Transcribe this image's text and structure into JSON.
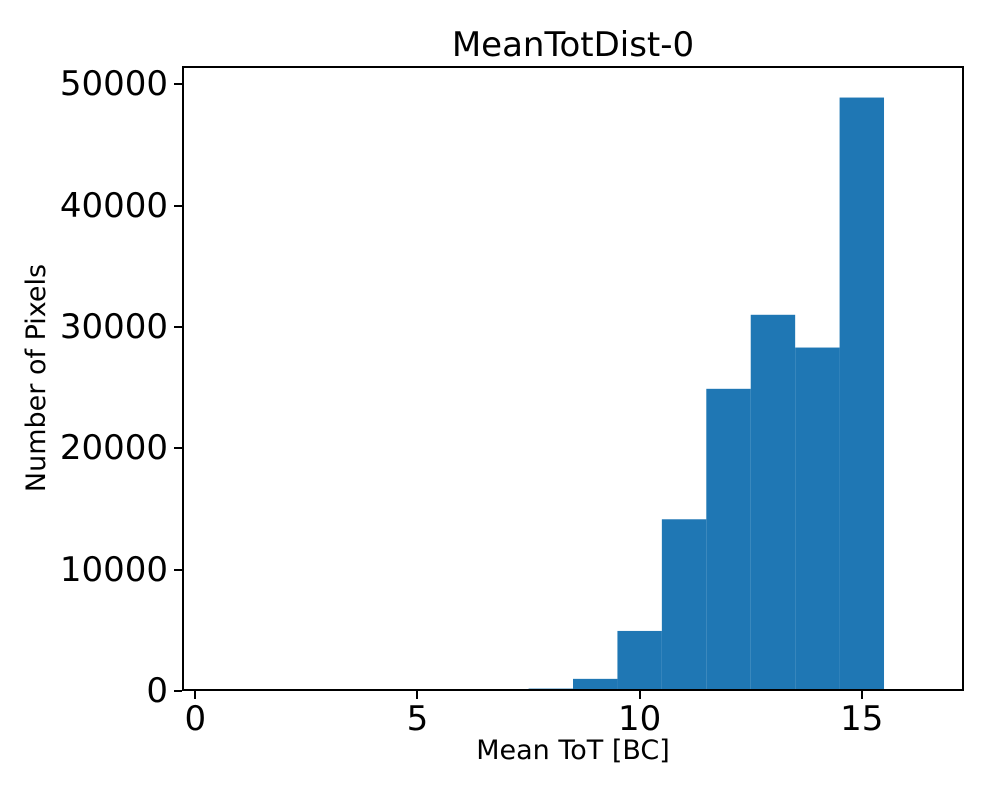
{
  "figure": {
    "title": "MeanTotDist-0",
    "xlabel": "Mean ToT [BC]",
    "ylabel": "Number of Pixels"
  },
  "chart_data": {
    "type": "bar",
    "subtype": "histogram",
    "title": "MeanTotDist-0",
    "xlabel": "Mean ToT [BC]",
    "ylabel": "Number of Pixels",
    "bin_edges": [
      7.5,
      8.5,
      9.5,
      10.5,
      11.5,
      12.5,
      13.5,
      14.5,
      15.5
    ],
    "counts": [
      200,
      1000,
      4950,
      14150,
      24900,
      31000,
      28300,
      48900
    ],
    "x_ticks": [
      0,
      5,
      10,
      15
    ],
    "y_ticks": [
      0,
      10000,
      20000,
      30000,
      40000,
      50000
    ],
    "xlim": [
      -0.3,
      17.3
    ],
    "ylim": [
      0,
      51500
    ],
    "grid": false,
    "legend": null,
    "bar_color": "#1f77b4",
    "axis_color": "#000000",
    "background_color": "#ffffff"
  }
}
